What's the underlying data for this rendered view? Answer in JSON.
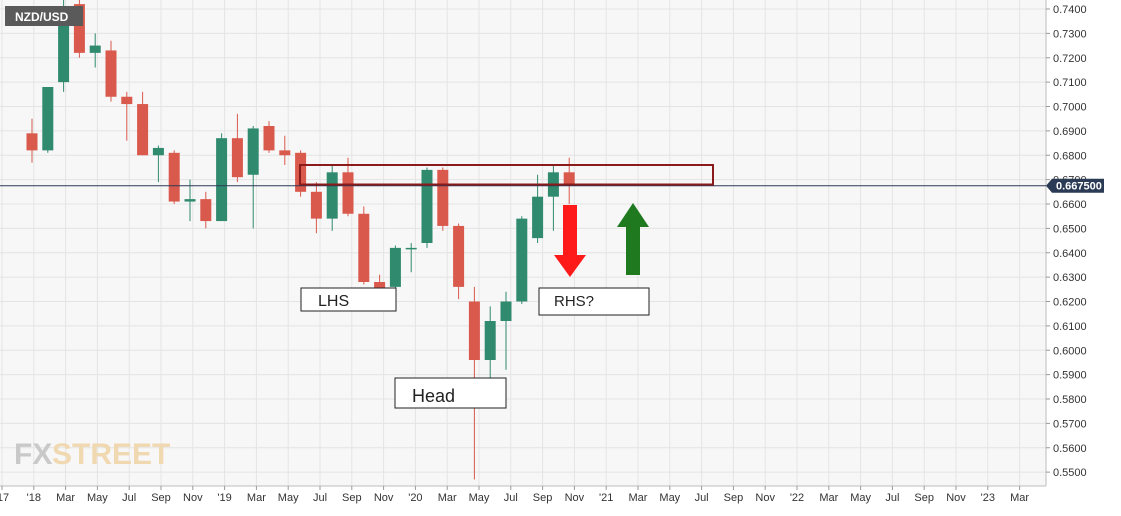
{
  "symbol_label": "NZD/USD",
  "colors": {
    "background": "#f7f7f7",
    "grid": "#e4e4e4",
    "bull": "#2f8a6e",
    "bear": "#d9594c",
    "resistance_box": "#8b1a1a",
    "price_line": "#2b3a55",
    "price_tag": "#2b3a55",
    "down_arrow": "#ff1a1a",
    "up_arrow": "#1f7a1f",
    "axis_text": "#333333",
    "watermark": "#c9c9c9"
  },
  "watermark": {
    "fx": "FX",
    "street": "STREET"
  },
  "current_price_label": "0.667500",
  "chart_data": {
    "type": "candlestick",
    "period": "monthly",
    "y_ticks": [
      "0.7400",
      "0.7300",
      "0.7200",
      "0.7100",
      "0.7000",
      "0.6900",
      "0.6800",
      "0.6700",
      "0.6600",
      "0.6500",
      "0.6400",
      "0.6300",
      "0.6200",
      "0.6100",
      "0.6000",
      "0.5900",
      "0.5800",
      "0.5700",
      "0.5600",
      "0.5500"
    ],
    "ylim": [
      0.546,
      0.743
    ],
    "x_labels": [
      "'17",
      "'18",
      "Mar",
      "May",
      "Jul",
      "Sep",
      "Nov",
      "'19",
      "Mar",
      "May",
      "Jul",
      "Sep",
      "Nov",
      "'20",
      "Mar",
      "May",
      "Jul",
      "Sep",
      "Nov",
      "'21",
      "Mar",
      "May",
      "Jul",
      "Sep",
      "Nov",
      "'22",
      "Mar",
      "May",
      "Jul",
      "Sep",
      "Nov",
      "'23",
      "Mar"
    ],
    "current_price": 0.6675,
    "candles": [
      {
        "o": 0.689,
        "h": 0.695,
        "l": 0.677,
        "c": 0.682
      },
      {
        "o": 0.682,
        "h": 0.708,
        "l": 0.681,
        "c": 0.708
      },
      {
        "o": 0.71,
        "h": 0.744,
        "l": 0.706,
        "c": 0.74
      },
      {
        "o": 0.742,
        "h": 0.744,
        "l": 0.72,
        "c": 0.722
      },
      {
        "o": 0.722,
        "h": 0.73,
        "l": 0.716,
        "c": 0.725
      },
      {
        "o": 0.723,
        "h": 0.727,
        "l": 0.702,
        "c": 0.704
      },
      {
        "o": 0.704,
        "h": 0.706,
        "l": 0.686,
        "c": 0.701
      },
      {
        "o": 0.701,
        "h": 0.706,
        "l": 0.68,
        "c": 0.68
      },
      {
        "o": 0.68,
        "h": 0.684,
        "l": 0.669,
        "c": 0.683
      },
      {
        "o": 0.681,
        "h": 0.682,
        "l": 0.66,
        "c": 0.661
      },
      {
        "o": 0.661,
        "h": 0.67,
        "l": 0.653,
        "c": 0.662
      },
      {
        "o": 0.662,
        "h": 0.665,
        "l": 0.65,
        "c": 0.653
      },
      {
        "o": 0.653,
        "h": 0.689,
        "l": 0.653,
        "c": 0.687
      },
      {
        "o": 0.687,
        "h": 0.697,
        "l": 0.669,
        "c": 0.671
      },
      {
        "o": 0.672,
        "h": 0.692,
        "l": 0.65,
        "c": 0.691
      },
      {
        "o": 0.692,
        "h": 0.694,
        "l": 0.681,
        "c": 0.682
      },
      {
        "o": 0.682,
        "h": 0.688,
        "l": 0.676,
        "c": 0.68
      },
      {
        "o": 0.681,
        "h": 0.682,
        "l": 0.663,
        "c": 0.665
      },
      {
        "o": 0.665,
        "h": 0.669,
        "l": 0.648,
        "c": 0.654
      },
      {
        "o": 0.654,
        "h": 0.676,
        "l": 0.649,
        "c": 0.673
      },
      {
        "o": 0.673,
        "h": 0.679,
        "l": 0.655,
        "c": 0.656
      },
      {
        "o": 0.656,
        "h": 0.659,
        "l": 0.627,
        "c": 0.628
      },
      {
        "o": 0.628,
        "h": 0.631,
        "l": 0.623,
        "c": 0.625
      },
      {
        "o": 0.626,
        "h": 0.643,
        "l": 0.62,
        "c": 0.642
      },
      {
        "o": 0.642,
        "h": 0.644,
        "l": 0.632,
        "c": 0.642
      },
      {
        "o": 0.644,
        "h": 0.675,
        "l": 0.642,
        "c": 0.674
      },
      {
        "o": 0.674,
        "h": 0.675,
        "l": 0.649,
        "c": 0.651
      },
      {
        "o": 0.651,
        "h": 0.652,
        "l": 0.621,
        "c": 0.626
      },
      {
        "o": 0.62,
        "h": 0.626,
        "l": 0.547,
        "c": 0.596
      },
      {
        "o": 0.596,
        "h": 0.618,
        "l": 0.585,
        "c": 0.612
      },
      {
        "o": 0.612,
        "h": 0.624,
        "l": 0.592,
        "c": 0.62
      },
      {
        "o": 0.62,
        "h": 0.655,
        "l": 0.619,
        "c": 0.654
      },
      {
        "o": 0.646,
        "h": 0.672,
        "l": 0.644,
        "c": 0.663
      },
      {
        "o": 0.663,
        "h": 0.676,
        "l": 0.649,
        "c": 0.673
      },
      {
        "o": 0.673,
        "h": 0.679,
        "l": 0.66,
        "c": 0.668
      }
    ],
    "annotations": {
      "lhs": "LHS",
      "head": "Head",
      "rhs": "RHS?"
    },
    "resistance_zone": [
      0.668,
      0.676
    ]
  }
}
